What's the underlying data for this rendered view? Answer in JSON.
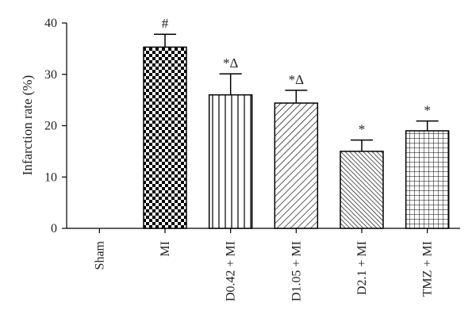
{
  "chart_data": {
    "type": "bar",
    "categories": [
      "Sham",
      "MI",
      "D0.42 + MI",
      "D1.05 + MI",
      "D2.1 + MI",
      "TMZ + MI"
    ],
    "values": [
      0,
      35.3,
      26.0,
      24.4,
      15.0,
      19.0
    ],
    "errors": [
      0,
      2.5,
      4.1,
      2.5,
      2.2,
      1.9
    ],
    "annotations": [
      "",
      "#",
      "*Δ",
      "*Δ",
      "*",
      "*"
    ],
    "patterns": [
      "none",
      "checkerboard",
      "vertical-lines",
      "diagonal-lines",
      "dense-diagonal-lines",
      "grid"
    ],
    "ylabel": "Infarction rate (%)",
    "xlabel": "",
    "title": "",
    "ylim": [
      0,
      40
    ],
    "yticks": [
      0,
      10,
      20,
      30,
      40
    ],
    "grid": false,
    "legend": "none",
    "bar_color": "#000000",
    "bar_fill": "#ffffff"
  }
}
